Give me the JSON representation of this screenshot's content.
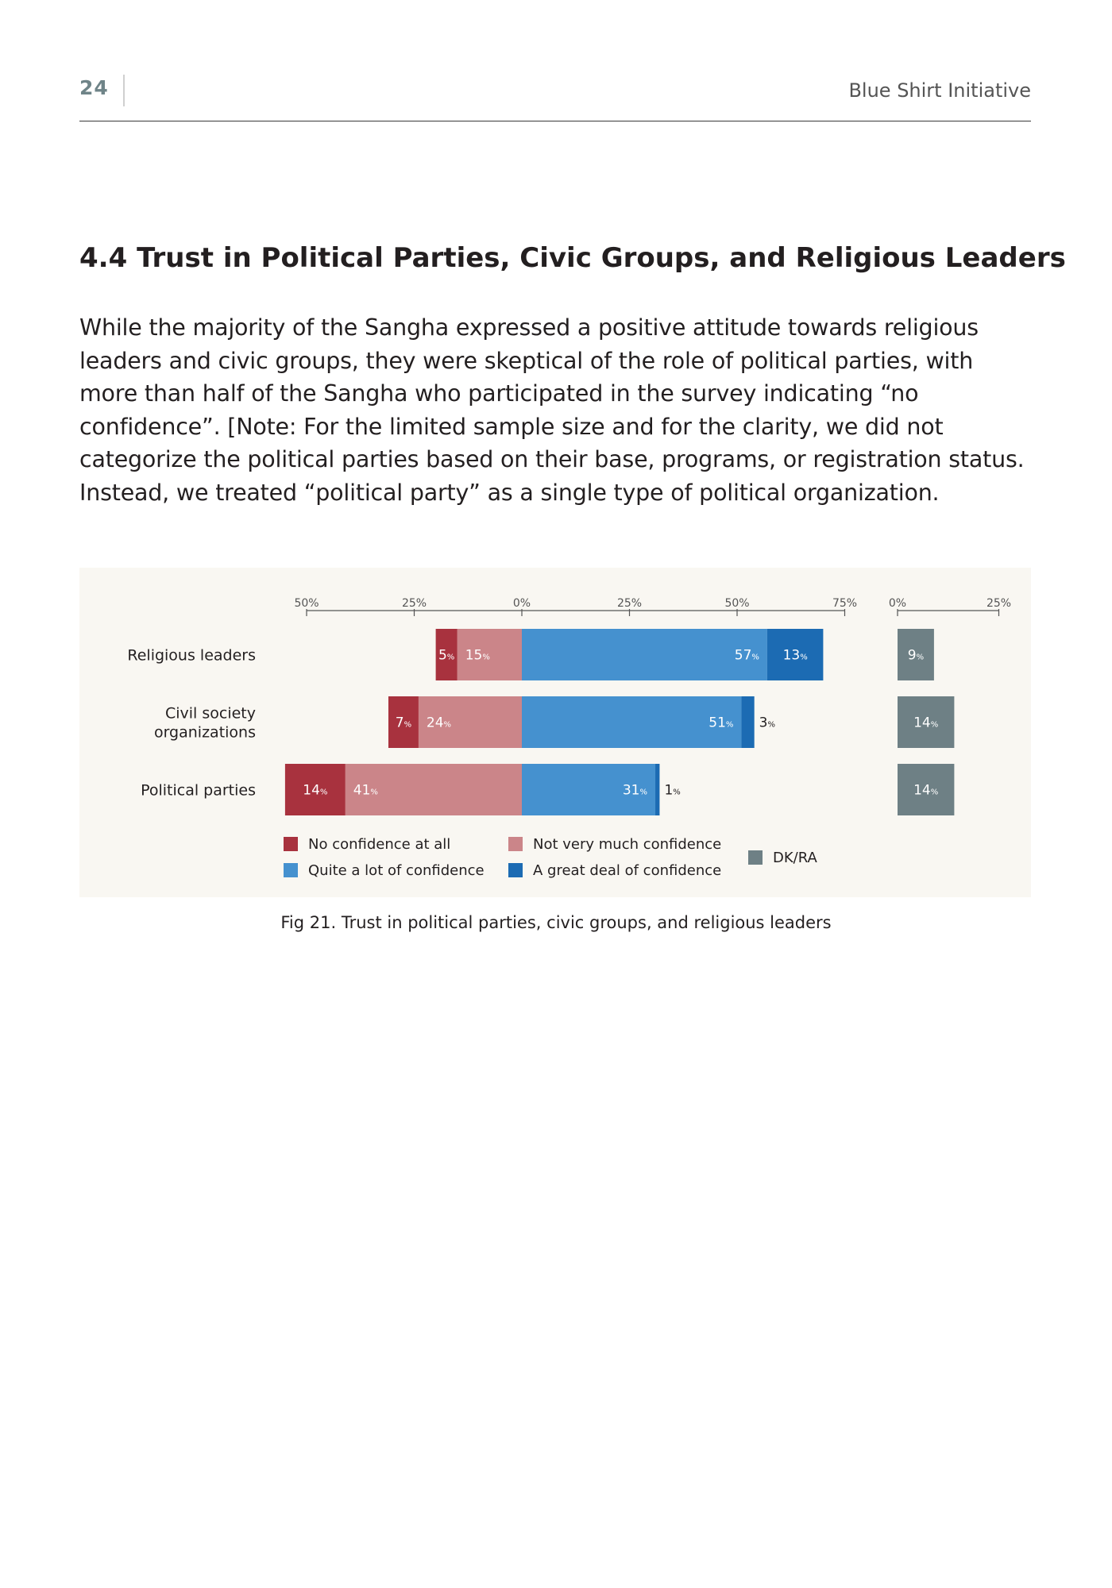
{
  "header": {
    "page_number": "24",
    "doc_title": "Blue Shirt Initiative"
  },
  "section": {
    "heading": "4.4 Trust in Political Parties, Civic Groups, and Religious Leaders",
    "paragraph": "While the majority of the Sangha expressed a positive attitude towards religious leaders and civic groups, they were skeptical of the role of political parties, with more than half of the Sangha who participated in the survey indicating “no confidence”. [Note: For the limited sample size and for the clarity, we did not categorize the political parties based on their base, programs, or registration status. Instead, we treated “political party” as a single type of political organization."
  },
  "figure": {
    "caption": "Fig 21. Trust in political parties, civic groups, and religious leaders"
  },
  "chart_data": {
    "type": "bar",
    "subtype": "diverging-stacked-horizontal",
    "categories": [
      "Religious leaders",
      "Civil society organizations",
      "Political parties"
    ],
    "category_lines": [
      [
        "Religious leaders"
      ],
      [
        "Civil society",
        "organizations"
      ],
      [
        "Political parties"
      ]
    ],
    "main_axis_ticks": [
      "50%",
      "25%",
      "0%",
      "25%",
      "50%",
      "75%"
    ],
    "main_axis_tick_values": [
      -50,
      -25,
      0,
      25,
      50,
      75
    ],
    "side_axis_ticks": [
      "0%",
      "25%"
    ],
    "side_axis_tick_values": [
      0,
      25
    ],
    "series": [
      {
        "name": "No confidence at all",
        "side": "negative",
        "color": "#a8323e",
        "values": [
          5,
          7,
          14
        ],
        "label_color": "#ffffff"
      },
      {
        "name": "Not very much confidence",
        "side": "negative",
        "color": "#cb8589",
        "values": [
          15,
          24,
          41
        ],
        "label_color": "#ffffff"
      },
      {
        "name": "Quite a lot of confidence",
        "side": "positive",
        "color": "#4591cf",
        "values": [
          57,
          51,
          31
        ],
        "label_color": "#ffffff"
      },
      {
        "name": "A great deal of confidence",
        "side": "positive",
        "color": "#1c6bb3",
        "values": [
          13,
          3,
          1
        ],
        "label_color": "#ffffff"
      },
      {
        "name": "DK/RA",
        "side": "separate",
        "color": "#6e8085",
        "values": [
          9,
          14,
          14
        ],
        "label_color": "#ffffff"
      }
    ],
    "value_suffix": "%",
    "legend_position": "bottom"
  }
}
